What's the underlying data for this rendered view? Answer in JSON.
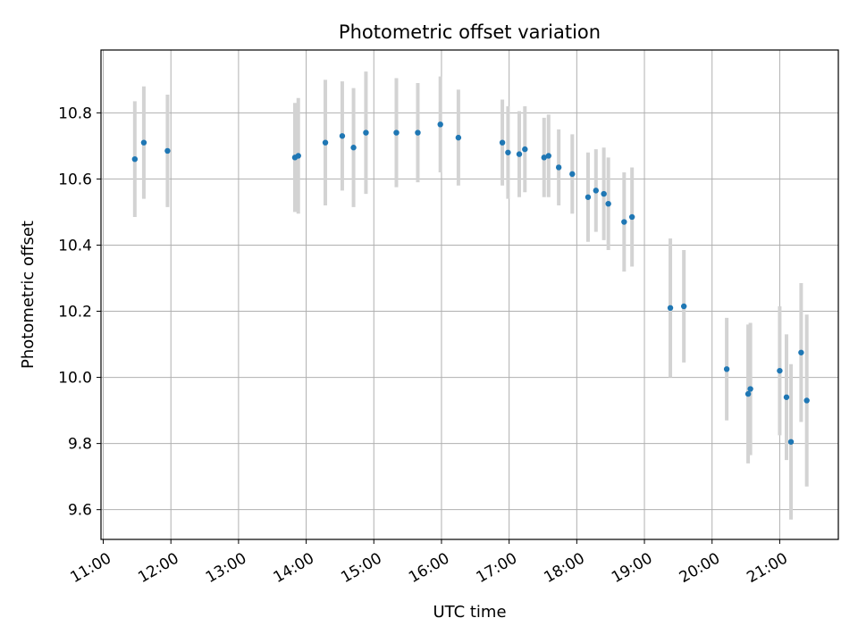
{
  "chart_data": {
    "type": "scatter",
    "title": "Photometric offset variation",
    "xlabel": "UTC time",
    "ylabel": "Photometric offset",
    "x_tick_labels": [
      "11:00",
      "12:00",
      "13:00",
      "14:00",
      "15:00",
      "16:00",
      "17:00",
      "18:00",
      "19:00",
      "20:00",
      "21:00"
    ],
    "x_ticks": [
      "11:00",
      "12:00",
      "13:00",
      "14:00",
      "15:00",
      "16:00",
      "17:00",
      "18:00",
      "19:00",
      "20:00",
      "21:00"
    ],
    "y_ticks": [
      9.6,
      9.8,
      10.0,
      10.2,
      10.4,
      10.6,
      10.8
    ],
    "y_tick_labels": [
      "9.6",
      "9.8",
      "10.0",
      "10.2",
      "10.4",
      "10.6",
      "10.8"
    ],
    "xlim": [
      "10:58",
      "21:52"
    ],
    "ylim": [
      9.51,
      10.99
    ],
    "grid": true,
    "marker_color": "#1f77b4",
    "errorbar_color": "#d3d3d3",
    "series": [
      {
        "points": [
          {
            "x": "11:28",
            "y": 10.66,
            "err": 0.175
          },
          {
            "x": "11:36",
            "y": 10.71,
            "err": 0.17
          },
          {
            "x": "11:57",
            "y": 10.685,
            "err": 0.17
          },
          {
            "x": "13:50",
            "y": 10.665,
            "err": 0.165
          },
          {
            "x": "13:53",
            "y": 10.67,
            "err": 0.175
          },
          {
            "x": "14:17",
            "y": 10.71,
            "err": 0.19
          },
          {
            "x": "14:32",
            "y": 10.73,
            "err": 0.165
          },
          {
            "x": "14:42",
            "y": 10.695,
            "err": 0.18
          },
          {
            "x": "14:53",
            "y": 10.74,
            "err": 0.185
          },
          {
            "x": "15:20",
            "y": 10.74,
            "err": 0.165
          },
          {
            "x": "15:39",
            "y": 10.74,
            "err": 0.15
          },
          {
            "x": "15:59",
            "y": 10.765,
            "err": 0.145
          },
          {
            "x": "16:15",
            "y": 10.725,
            "err": 0.145
          },
          {
            "x": "16:54",
            "y": 10.71,
            "err": 0.13
          },
          {
            "x": "16:59",
            "y": 10.68,
            "err": 0.14
          },
          {
            "x": "17:09",
            "y": 10.675,
            "err": 0.13
          },
          {
            "x": "17:14",
            "y": 10.69,
            "err": 0.13
          },
          {
            "x": "17:31",
            "y": 10.665,
            "err": 0.12
          },
          {
            "x": "17:35",
            "y": 10.67,
            "err": 0.125
          },
          {
            "x": "17:44",
            "y": 10.635,
            "err": 0.115
          },
          {
            "x": "17:56",
            "y": 10.615,
            "err": 0.12
          },
          {
            "x": "18:10",
            "y": 10.545,
            "err": 0.135
          },
          {
            "x": "18:17",
            "y": 10.565,
            "err": 0.125
          },
          {
            "x": "18:24",
            "y": 10.555,
            "err": 0.14
          },
          {
            "x": "18:28",
            "y": 10.525,
            "err": 0.14
          },
          {
            "x": "18:42",
            "y": 10.47,
            "err": 0.15
          },
          {
            "x": "18:49",
            "y": 10.485,
            "err": 0.15
          },
          {
            "x": "19:23",
            "y": 10.21,
            "err": 0.21
          },
          {
            "x": "19:35",
            "y": 10.215,
            "err": 0.17
          },
          {
            "x": "20:13",
            "y": 10.025,
            "err": 0.155
          },
          {
            "x": "20:32",
            "y": 9.95,
            "err": 0.21
          },
          {
            "x": "20:34",
            "y": 9.965,
            "err": 0.2
          },
          {
            "x": "21:00",
            "y": 10.02,
            "err": 0.195
          },
          {
            "x": "21:06",
            "y": 9.94,
            "err": 0.19
          },
          {
            "x": "21:10",
            "y": 9.805,
            "err": 0.235
          },
          {
            "x": "21:19",
            "y": 10.075,
            "err": 0.21
          },
          {
            "x": "21:24",
            "y": 9.93,
            "err": 0.26
          }
        ]
      }
    ]
  }
}
